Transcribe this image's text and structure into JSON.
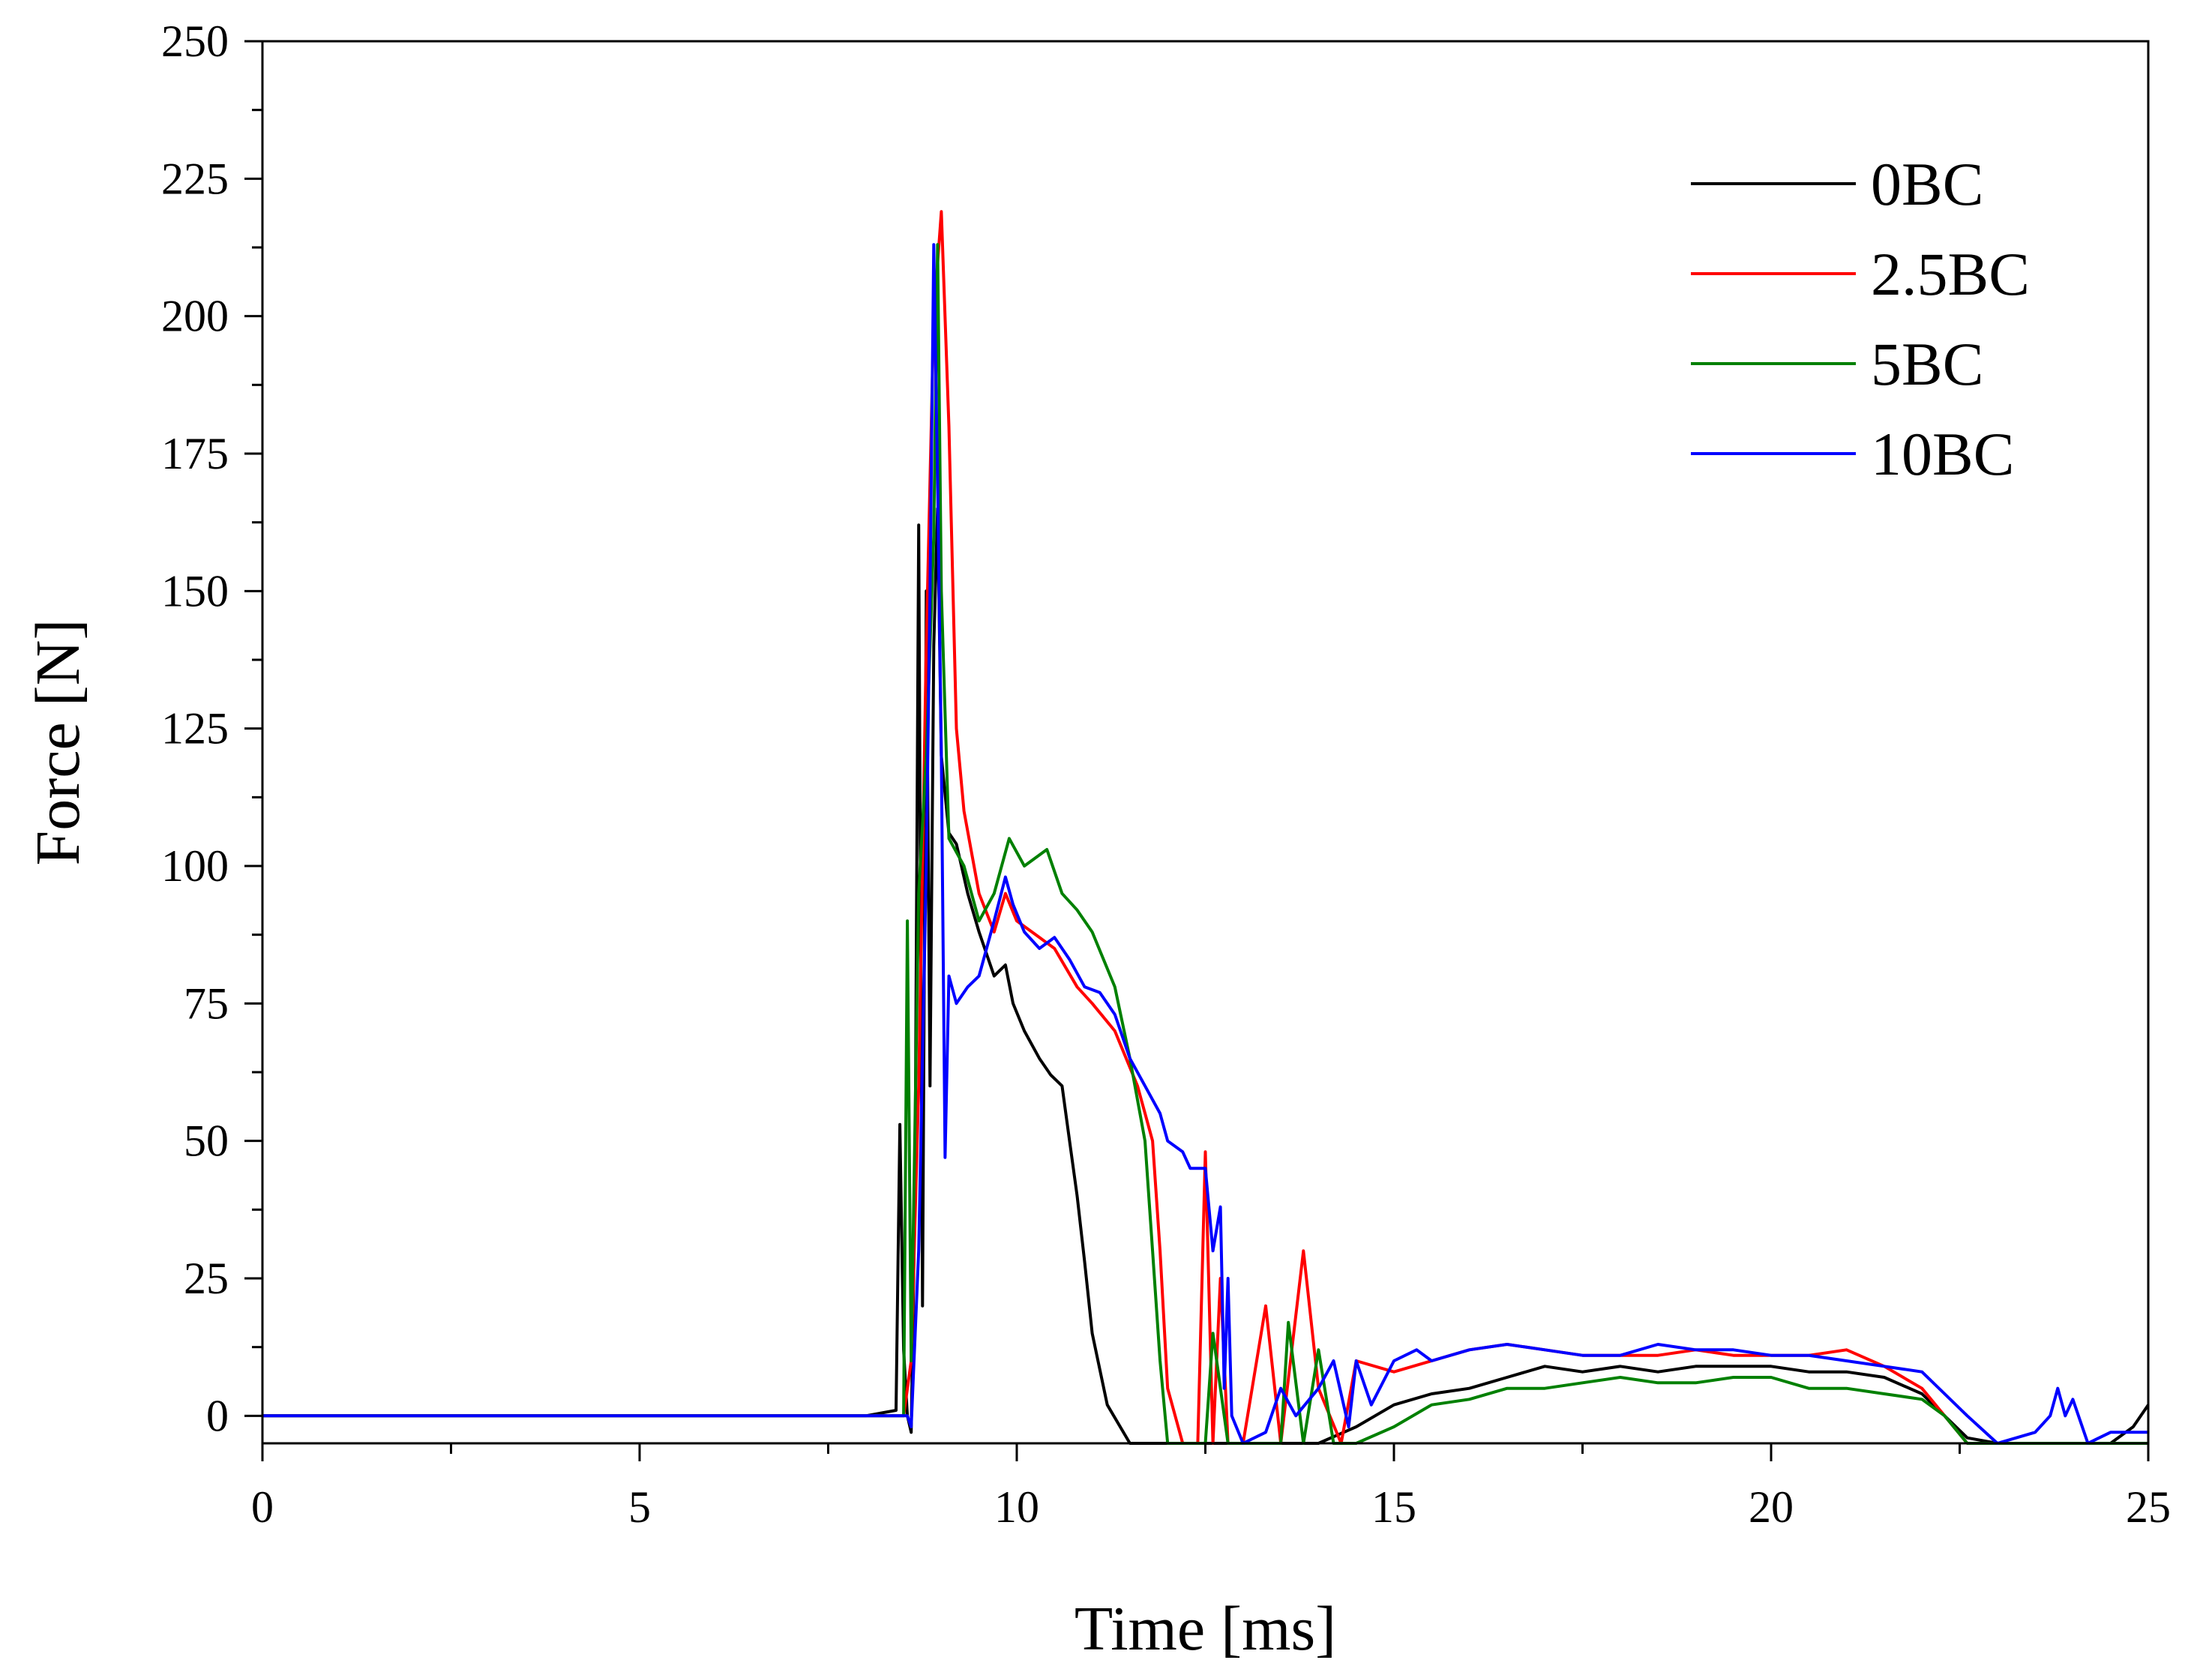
{
  "chart_data": {
    "type": "line",
    "title": "",
    "xlabel": "Time [ms]",
    "ylabel": "Force [N]",
    "xlim": [
      0,
      25
    ],
    "ylim": [
      -5,
      250
    ],
    "x_ticks": [
      0,
      5,
      10,
      15,
      20,
      25
    ],
    "y_ticks": [
      0,
      25,
      50,
      75,
      100,
      125,
      150,
      175,
      200,
      225,
      250
    ],
    "grid": false,
    "legend_position": "top-right",
    "series": [
      {
        "name": "0BC",
        "color": "#000000",
        "x": [
          0,
          8.0,
          8.4,
          8.45,
          8.5,
          8.55,
          8.6,
          8.65,
          8.7,
          8.75,
          8.8,
          8.85,
          8.9,
          8.95,
          9.0,
          9.1,
          9.2,
          9.35,
          9.5,
          9.7,
          9.85,
          9.95,
          10.1,
          10.3,
          10.45,
          10.6,
          10.7,
          10.8,
          10.9,
          11.0,
          11.2,
          11.5,
          11.8,
          12.0,
          12.5,
          13.0,
          14.0,
          14.5,
          15.0,
          15.5,
          16.0,
          16.5,
          17.0,
          17.5,
          18.0,
          18.5,
          19.0,
          19.5,
          20.0,
          20.5,
          21.0,
          21.5,
          22.0,
          22.3,
          22.6,
          23.0,
          23.5,
          24.0,
          24.5,
          24.8,
          25.0
        ],
        "y": [
          0,
          0,
          1,
          53,
          12,
          0,
          -3,
          40,
          162,
          20,
          150,
          60,
          140,
          165,
          120,
          106,
          104,
          95,
          88,
          80,
          82,
          75,
          70,
          65,
          62,
          60,
          50,
          40,
          28,
          15,
          2,
          -5,
          -5,
          -5,
          -5,
          -5,
          -5,
          -2,
          2,
          4,
          5,
          7,
          9,
          8,
          9,
          8,
          9,
          9,
          9,
          8,
          8,
          7,
          4,
          0,
          -4,
          -5,
          -5,
          -5,
          -5,
          -2,
          2
        ]
      },
      {
        "name": "2.5BC",
        "color": "#ff0000",
        "x": [
          0,
          8.0,
          8.5,
          8.6,
          8.7,
          8.8,
          8.9,
          9.0,
          9.1,
          9.2,
          9.3,
          9.5,
          9.7,
          9.85,
          10.0,
          10.3,
          10.5,
          10.8,
          11.0,
          11.3,
          11.6,
          11.8,
          11.9,
          12.0,
          12.2,
          12.4,
          12.5,
          12.6,
          12.7,
          12.8,
          13.0,
          13.3,
          13.5,
          13.8,
          14.0,
          14.3,
          14.5,
          15.0,
          15.5,
          16.0,
          16.5,
          17.0,
          17.5,
          18.0,
          18.5,
          19.0,
          19.5,
          20.0,
          20.5,
          21.0,
          21.5,
          22.0,
          22.3,
          22.6,
          23.0,
          24.0,
          25.0
        ],
        "y": [
          0,
          0,
          0,
          10,
          60,
          140,
          200,
          219,
          180,
          125,
          110,
          95,
          88,
          95,
          90,
          87,
          85,
          78,
          75,
          70,
          60,
          50,
          30,
          5,
          -5,
          -5,
          48,
          -5,
          25,
          -5,
          -5,
          20,
          -5,
          30,
          5,
          -5,
          10,
          8,
          10,
          12,
          13,
          12,
          11,
          11,
          11,
          12,
          11,
          11,
          11,
          12,
          9,
          5,
          0,
          -5,
          -5,
          -5,
          -5
        ]
      },
      {
        "name": "5BC",
        "color": "#008000",
        "x": [
          0,
          8.0,
          8.5,
          8.55,
          8.6,
          8.7,
          8.8,
          8.9,
          8.95,
          9.0,
          9.1,
          9.3,
          9.5,
          9.7,
          9.9,
          10.1,
          10.4,
          10.6,
          10.8,
          11.0,
          11.3,
          11.5,
          11.7,
          11.8,
          11.9,
          12.0,
          12.2,
          12.5,
          12.6,
          12.8,
          13.0,
          13.5,
          13.6,
          13.8,
          14.0,
          14.2,
          14.5,
          15.0,
          15.5,
          16.0,
          16.5,
          17.0,
          17.5,
          18.0,
          18.5,
          19.0,
          19.5,
          20.0,
          20.5,
          21.0,
          21.5,
          22.0,
          22.3,
          22.6,
          23.0,
          24.0,
          25.0
        ],
        "y": [
          0,
          0,
          0,
          90,
          10,
          95,
          120,
          160,
          213,
          150,
          105,
          100,
          90,
          95,
          105,
          100,
          103,
          95,
          92,
          88,
          78,
          65,
          50,
          30,
          10,
          -5,
          -5,
          -5,
          15,
          -5,
          -5,
          -5,
          17,
          -5,
          12,
          -5,
          -5,
          -2,
          2,
          3,
          5,
          5,
          6,
          7,
          6,
          6,
          7,
          7,
          5,
          5,
          4,
          3,
          0,
          -5,
          -5,
          -5,
          -5
        ]
      },
      {
        "name": "10BC",
        "color": "#0000ff",
        "x": [
          0,
          8.0,
          8.55,
          8.6,
          8.7,
          8.8,
          8.85,
          8.9,
          8.95,
          9.0,
          9.05,
          9.1,
          9.2,
          9.35,
          9.5,
          9.7,
          9.85,
          9.95,
          10.1,
          10.3,
          10.5,
          10.7,
          10.9,
          11.1,
          11.3,
          11.5,
          11.7,
          11.9,
          12.0,
          12.2,
          12.3,
          12.5,
          12.6,
          12.7,
          12.75,
          12.8,
          12.85,
          13.0,
          13.3,
          13.5,
          13.7,
          14.0,
          14.2,
          14.4,
          14.5,
          14.7,
          15.0,
          15.3,
          15.5,
          16.0,
          16.5,
          17.0,
          17.5,
          18.0,
          18.5,
          19.0,
          19.5,
          20.0,
          20.5,
          21.0,
          21.5,
          22.0,
          22.3,
          22.6,
          23.0,
          23.5,
          23.7,
          23.8,
          23.9,
          24.0,
          24.2,
          24.5,
          25.0
        ],
        "y": [
          0,
          0,
          0,
          -2,
          30,
          100,
          150,
          213,
          170,
          120,
          47,
          80,
          75,
          78,
          80,
          90,
          98,
          93,
          88,
          85,
          87,
          83,
          78,
          77,
          73,
          65,
          60,
          55,
          50,
          48,
          45,
          45,
          30,
          38,
          5,
          25,
          0,
          -5,
          -3,
          5,
          0,
          5,
          10,
          -2,
          10,
          2,
          10,
          12,
          10,
          12,
          13,
          12,
          11,
          11,
          13,
          12,
          12,
          11,
          11,
          10,
          9,
          8,
          4,
          0,
          -5,
          -3,
          0,
          5,
          0,
          3,
          -5,
          -3,
          -3
        ]
      }
    ]
  }
}
